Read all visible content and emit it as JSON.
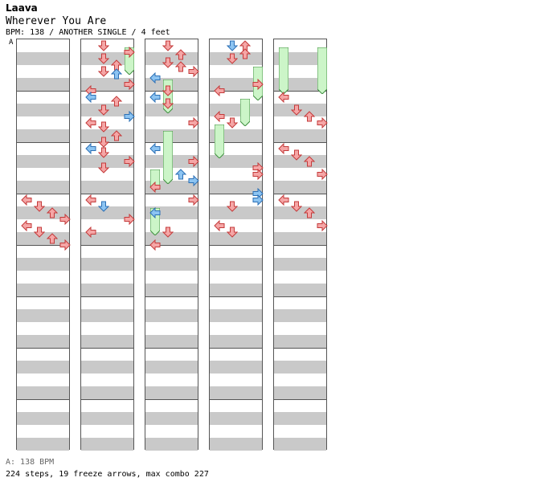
{
  "header": {
    "artist": "Laava",
    "title": "Wherever You Are",
    "meta": "BPM: 138 / ANOTHER SINGLE / 4 feet",
    "segment_marker": "A"
  },
  "footer": {
    "bpm_line": "A: 138 BPM",
    "stats": "224 steps, 19 freeze arrows, max combo 227"
  },
  "chart": {
    "steps": 224,
    "freeze_arrows": 19,
    "max_combo": 227,
    "bpm": 138,
    "difficulty": "ANOTHER",
    "style": "SINGLE",
    "feet": 4,
    "colors": {
      "quarter_arrow": "#f5a6a6",
      "quarter_outline": "#c43a3a",
      "eighth_arrow": "#8cc4f2",
      "eighth_outline": "#2b6fb5",
      "freeze_fill": "#ccf5c8",
      "freeze_outline": "#3e8f3e",
      "stripe": "#c9c9c9"
    },
    "columns": [
      {
        "measure_start": -4,
        "notes": [
          {
            "lane": "L",
            "beat": 12.0,
            "q": "4"
          },
          {
            "lane": "D",
            "beat": 12.5,
            "q": "4"
          },
          {
            "lane": "U",
            "beat": 13.0,
            "q": "4"
          },
          {
            "lane": "R",
            "beat": 13.5,
            "q": "4"
          },
          {
            "lane": "L",
            "beat": 14.0,
            "q": "4"
          },
          {
            "lane": "D",
            "beat": 14.5,
            "q": "4"
          },
          {
            "lane": "U",
            "beat": 15.0,
            "q": "4"
          },
          {
            "lane": "R",
            "beat": 15.5,
            "q": "4"
          }
        ],
        "freezes": []
      },
      {
        "measure_start": 0,
        "notes": [
          {
            "lane": "D",
            "beat": 0.0,
            "q": "4"
          },
          {
            "lane": "R",
            "beat": 0.5,
            "q": "4"
          },
          {
            "lane": "D",
            "beat": 1.0,
            "q": "4"
          },
          {
            "lane": "U",
            "beat": 1.5,
            "q": "4"
          },
          {
            "lane": "D",
            "beat": 2.0,
            "q": "4"
          },
          {
            "lane": "U",
            "beat": 2.2,
            "q": "8"
          },
          {
            "lane": "R",
            "beat": 3.0,
            "q": "4"
          },
          {
            "lane": "L",
            "beat": 3.5,
            "q": "4"
          },
          {
            "lane": "L",
            "beat": 4.0,
            "q": "8"
          },
          {
            "lane": "U",
            "beat": 4.3,
            "q": "4"
          },
          {
            "lane": "D",
            "beat": 5.0,
            "q": "4"
          },
          {
            "lane": "R",
            "beat": 5.5,
            "q": "8"
          },
          {
            "lane": "L",
            "beat": 6.0,
            "q": "4"
          },
          {
            "lane": "D",
            "beat": 6.3,
            "q": "4"
          },
          {
            "lane": "U",
            "beat": 7.0,
            "q": "4"
          },
          {
            "lane": "D",
            "beat": 7.5,
            "q": "4"
          },
          {
            "lane": "L",
            "beat": 8.0,
            "q": "8"
          },
          {
            "lane": "D",
            "beat": 8.3,
            "q": "4"
          },
          {
            "lane": "R",
            "beat": 9.0,
            "q": "4"
          },
          {
            "lane": "D",
            "beat": 9.5,
            "q": "4"
          },
          {
            "lane": "L",
            "beat": 12.0,
            "q": "4"
          },
          {
            "lane": "D",
            "beat": 12.5,
            "q": "8"
          },
          {
            "lane": "R",
            "beat": 13.5,
            "q": "4"
          },
          {
            "lane": "L",
            "beat": 14.5,
            "q": "4"
          }
        ],
        "freezes": [
          {
            "lane": "R",
            "beat": 0.5,
            "length": 1.5
          }
        ]
      },
      {
        "measure_start": 4,
        "notes": [
          {
            "lane": "D",
            "beat": 0.0,
            "q": "4"
          },
          {
            "lane": "U",
            "beat": 0.7,
            "q": "4"
          },
          {
            "lane": "D",
            "beat": 1.3,
            "q": "4"
          },
          {
            "lane": "U",
            "beat": 1.6,
            "q": "4"
          },
          {
            "lane": "L",
            "beat": 2.5,
            "q": "8"
          },
          {
            "lane": "R",
            "beat": 2.0,
            "q": "4"
          },
          {
            "lane": "D",
            "beat": 3.5,
            "q": "4"
          },
          {
            "lane": "L",
            "beat": 4.0,
            "q": "8"
          },
          {
            "lane": "D",
            "beat": 4.5,
            "q": "4"
          },
          {
            "lane": "R",
            "beat": 6.0,
            "q": "4"
          },
          {
            "lane": "L",
            "beat": 8.0,
            "q": "8"
          },
          {
            "lane": "R",
            "beat": 9.0,
            "q": "4"
          },
          {
            "lane": "U",
            "beat": 10.0,
            "q": "8"
          },
          {
            "lane": "R",
            "beat": 10.5,
            "q": "8"
          },
          {
            "lane": "L",
            "beat": 11.0,
            "q": "4"
          },
          {
            "lane": "R",
            "beat": 12.0,
            "q": "4"
          },
          {
            "lane": "L",
            "beat": 13.0,
            "q": "8"
          },
          {
            "lane": "D",
            "beat": 14.5,
            "q": "4"
          },
          {
            "lane": "L",
            "beat": 15.5,
            "q": "4"
          }
        ],
        "freezes": [
          {
            "lane": "D",
            "beat": 3.0,
            "length": 2.0
          },
          {
            "lane": "L",
            "beat": 10.0,
            "length": 1.0
          },
          {
            "lane": "D",
            "beat": 7.0,
            "length": 3.5
          },
          {
            "lane": "L",
            "beat": 13.0,
            "length": 1.5
          }
        ]
      },
      {
        "measure_start": 8,
        "notes": [
          {
            "lane": "D",
            "beat": 0.0,
            "q": "8"
          },
          {
            "lane": "U",
            "beat": 0.0,
            "q": "4"
          },
          {
            "lane": "D",
            "beat": 1.0,
            "q": "4"
          },
          {
            "lane": "U",
            "beat": 0.6,
            "q": "4"
          },
          {
            "lane": "L",
            "beat": 3.5,
            "q": "4"
          },
          {
            "lane": "R",
            "beat": 3.0,
            "q": "4"
          },
          {
            "lane": "L",
            "beat": 5.5,
            "q": "4"
          },
          {
            "lane": "D",
            "beat": 6.0,
            "q": "4"
          },
          {
            "lane": "R",
            "beat": 9.5,
            "q": "4"
          },
          {
            "lane": "R",
            "beat": 10.0,
            "q": "4"
          },
          {
            "lane": "R",
            "beat": 11.5,
            "q": "8"
          },
          {
            "lane": "R",
            "beat": 12.0,
            "q": "8"
          },
          {
            "lane": "D",
            "beat": 12.5,
            "q": "4"
          },
          {
            "lane": "L",
            "beat": 14.0,
            "q": "4"
          },
          {
            "lane": "D",
            "beat": 14.5,
            "q": "4"
          }
        ],
        "freezes": [
          {
            "lane": "R",
            "beat": 2.0,
            "length": 2.0
          },
          {
            "lane": "U",
            "beat": 4.5,
            "length": 1.5
          },
          {
            "lane": "L",
            "beat": 6.5,
            "length": 2.0
          }
        ]
      },
      {
        "measure_start": 12,
        "notes": [
          {
            "lane": "D",
            "beat": 5.0,
            "q": "4"
          },
          {
            "lane": "L",
            "beat": 4.0,
            "q": "4"
          },
          {
            "lane": "R",
            "beat": 6.0,
            "q": "4"
          },
          {
            "lane": "U",
            "beat": 5.5,
            "q": "4"
          },
          {
            "lane": "L",
            "beat": 8.0,
            "q": "4"
          },
          {
            "lane": "D",
            "beat": 8.5,
            "q": "4"
          },
          {
            "lane": "U",
            "beat": 9.0,
            "q": "4"
          },
          {
            "lane": "R",
            "beat": 10.0,
            "q": "4"
          },
          {
            "lane": "L",
            "beat": 12.0,
            "q": "4"
          },
          {
            "lane": "D",
            "beat": 12.5,
            "q": "4"
          },
          {
            "lane": "U",
            "beat": 13.0,
            "q": "4"
          },
          {
            "lane": "R",
            "beat": 14.0,
            "q": "4"
          }
        ],
        "freezes": [
          {
            "lane": "L",
            "beat": 0.5,
            "length": 3.0
          },
          {
            "lane": "R",
            "beat": 0.5,
            "length": 3.0
          }
        ]
      }
    ]
  }
}
